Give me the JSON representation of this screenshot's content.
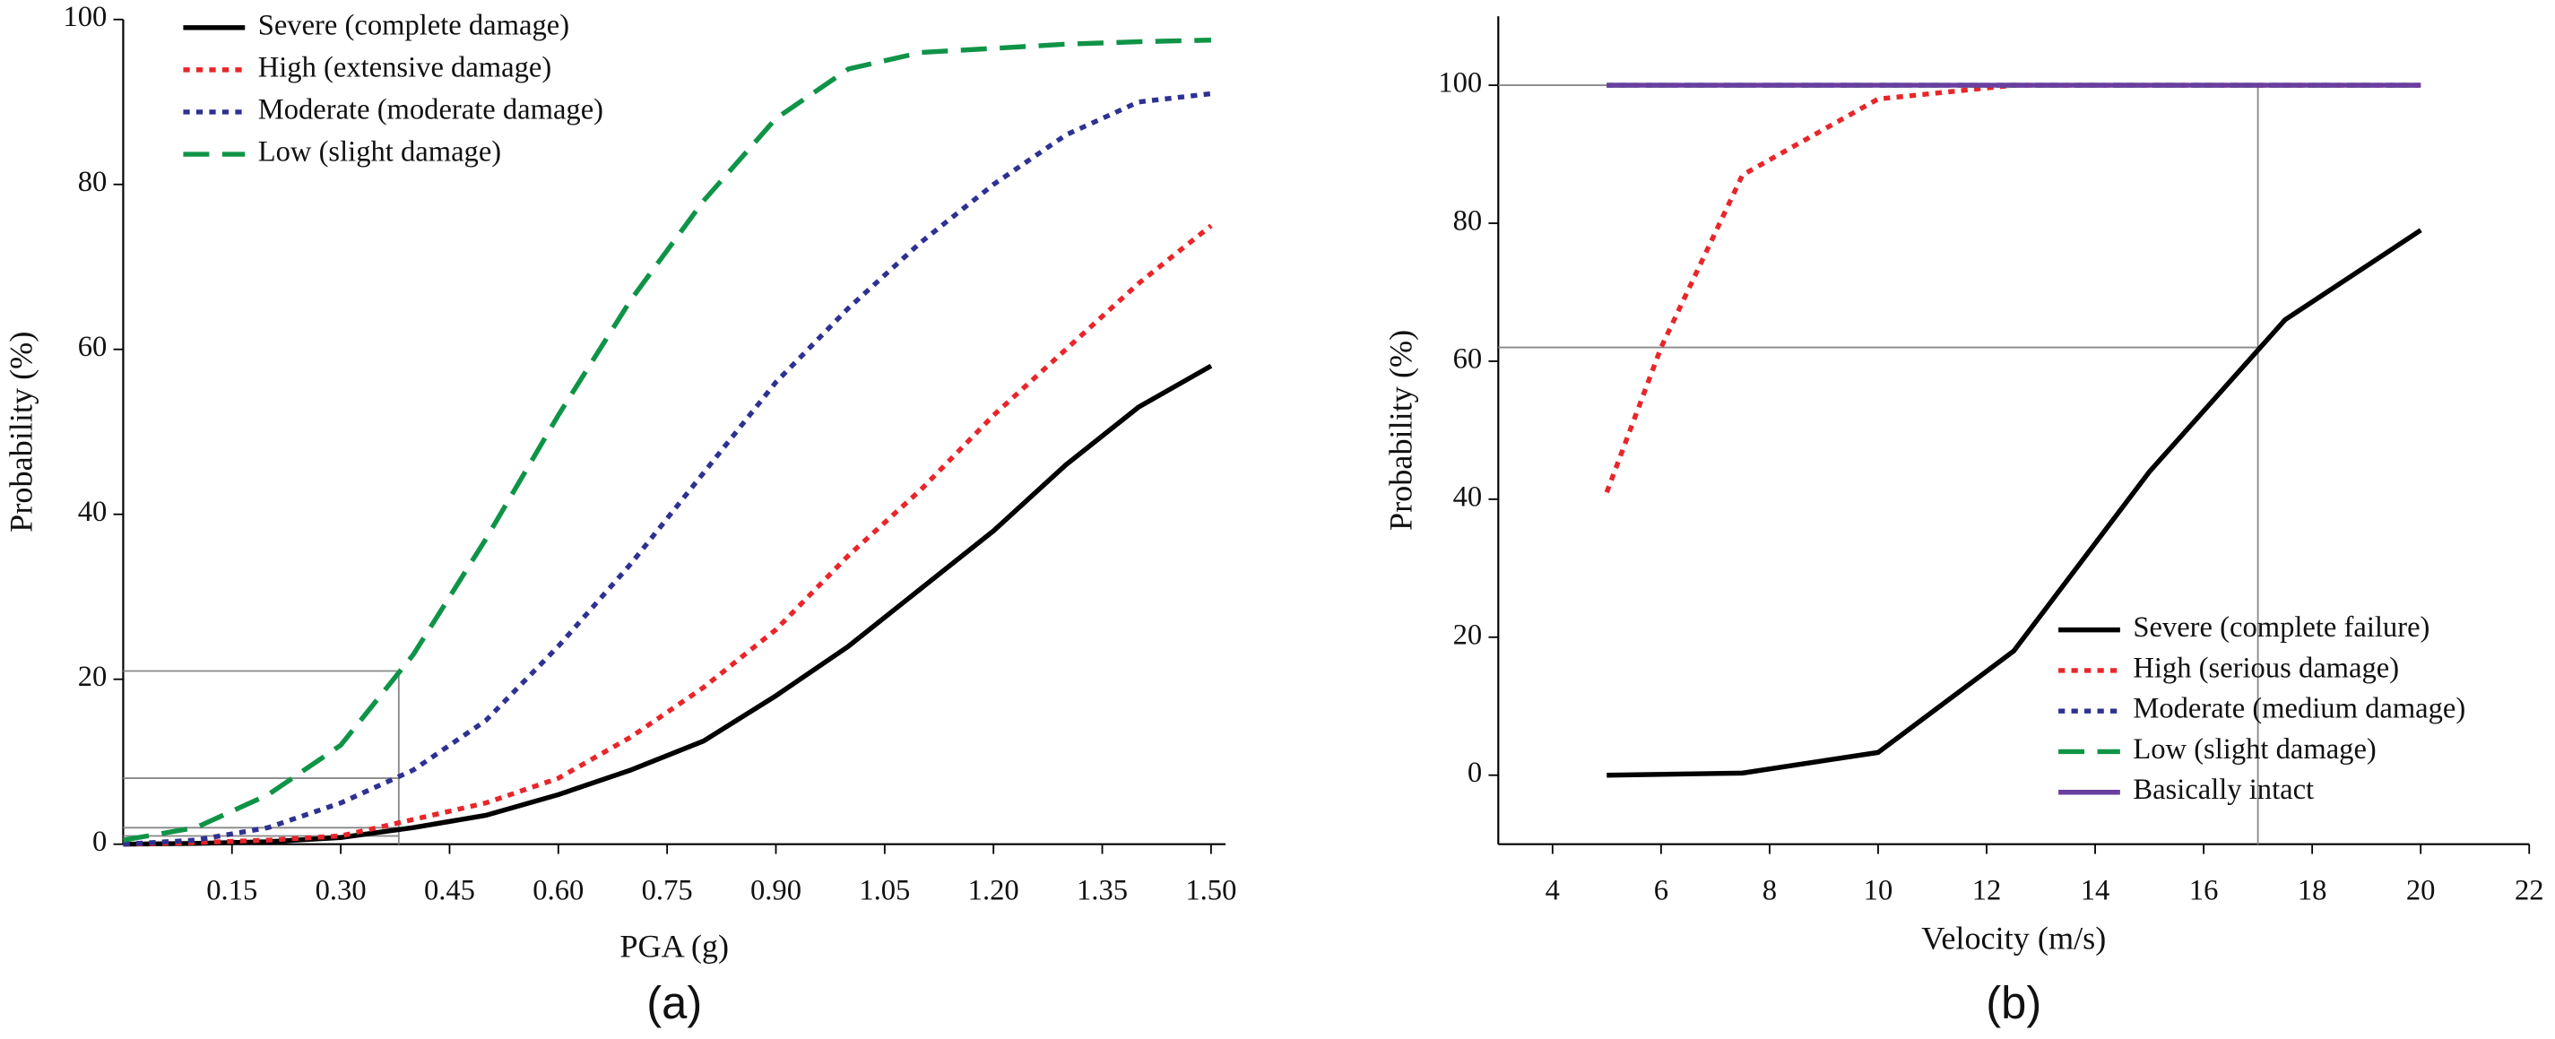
{
  "chart_data": [
    {
      "type": "line",
      "panel_label": "(a)",
      "x_label": "PGA (g)",
      "y_label": "Probability (%)",
      "x": [
        0,
        0.1,
        0.2,
        0.3,
        0.4,
        0.5,
        0.6,
        0.7,
        0.8,
        0.9,
        1.0,
        1.1,
        1.2,
        1.3,
        1.4,
        1.5
      ],
      "series": [
        {
          "name": "Severe (complete damage)",
          "color": "#000000",
          "dash": "solid",
          "values": [
            0,
            0.1,
            0.3,
            0.8,
            2,
            3.5,
            6,
            9,
            12.5,
            18,
            24,
            31,
            38,
            46,
            53,
            58
          ]
        },
        {
          "name": "High (extensive damage)",
          "color": "#e8262a",
          "dash": "dotted",
          "values": [
            0,
            0.2,
            0.5,
            1,
            3,
            5,
            8,
            13,
            19,
            26,
            35,
            43,
            52,
            60,
            68,
            75
          ]
        },
        {
          "name": "Moderate (moderate damage)",
          "color": "#2e3192",
          "dash": "dotted",
          "values": [
            0,
            0.5,
            2,
            5,
            9,
            15,
            24,
            34,
            45,
            56,
            65,
            73,
            80,
            86,
            90,
            91
          ]
        },
        {
          "name": "Low (slight damage)",
          "color": "#0f9447",
          "dash": "dashed",
          "values": [
            0.5,
            2,
            6,
            12,
            23,
            37,
            52,
            66,
            78,
            88,
            94,
            96,
            96.5,
            97,
            97.3,
            97.5
          ]
        }
      ],
      "xlim": [
        0,
        1.52
      ],
      "ylim": [
        0,
        100
      ],
      "xticks": [
        0.15,
        {
          "value": 0.3,
          "label": "0.30"
        },
        0.45,
        {
          "value": 0.6,
          "label": "0.60"
        },
        0.75,
        {
          "value": 0.9,
          "label": "0.90"
        },
        1.05,
        {
          "value": 1.2,
          "label": "1.20"
        },
        1.35,
        {
          "value": 1.5,
          "label": "1.50"
        }
      ],
      "yticks": [
        0,
        20,
        40,
        60,
        80,
        100
      ],
      "ref_hlines": [
        21,
        8,
        2,
        1
      ],
      "ref_vline": 0.38,
      "legend": "upper left"
    },
    {
      "type": "line",
      "panel_label": "(b)",
      "x_label": "Velocity (m/s)",
      "y_label": "Probability (%)",
      "series": [
        {
          "name": "Severe (complete failure)",
          "color": "#000000",
          "dash": "solid",
          "x": [
            5,
            7.5,
            10,
            12.5,
            15,
            17.5,
            20
          ],
          "values": [
            0,
            0.3,
            3.3,
            18,
            44,
            66,
            79
          ]
        },
        {
          "name": "High (serious damage)",
          "color": "#e8262a",
          "dash": "dotted",
          "x": [
            5,
            6,
            7.5,
            10,
            12.5,
            15,
            17.5,
            20
          ],
          "values": [
            41,
            62,
            87,
            98,
            100,
            100,
            100,
            100
          ]
        },
        {
          "name": "Moderate (medium damage)",
          "color": "#2e3192",
          "dash": "dotted",
          "x": [
            5,
            20
          ],
          "values": [
            100,
            100
          ]
        },
        {
          "name": "Low (slight damage)",
          "color": "#0f9447",
          "dash": "dashed",
          "x": [
            5,
            20
          ],
          "values": [
            100,
            100
          ]
        },
        {
          "name": "Basically intact",
          "color": "#6a3fa0",
          "dash": "solid",
          "x": [
            5,
            20
          ],
          "values": [
            100,
            100
          ]
        }
      ],
      "xlim": [
        3,
        22
      ],
      "ylim": [
        -10,
        110
      ],
      "xticks": [
        4,
        6,
        8,
        10,
        12,
        14,
        16,
        18,
        20,
        22
      ],
      "yticks": [
        0,
        20,
        40,
        60,
        80,
        100
      ],
      "ref_hlines": [
        62,
        100
      ],
      "ref_vline": 17,
      "legend": "lower right"
    }
  ]
}
